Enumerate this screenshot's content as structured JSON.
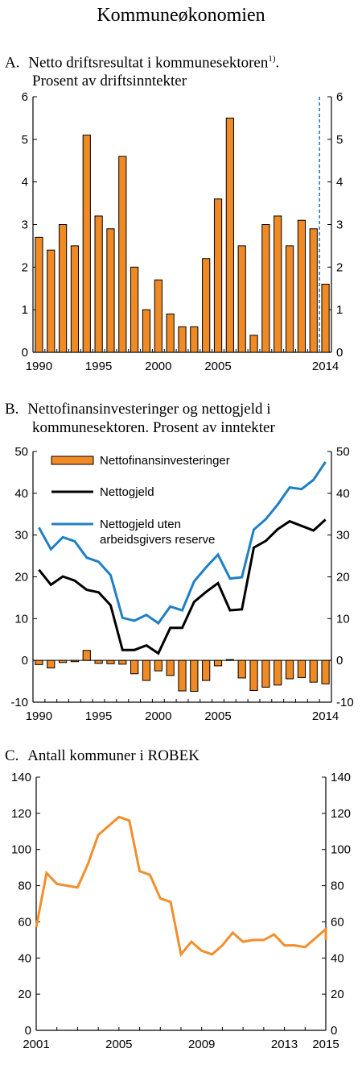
{
  "main_title": "Kommuneøkonomien",
  "panels": {
    "a": {
      "letter": "A.",
      "line1": "Netto driftsresultat i kommunesektoren",
      "footnote": "1)",
      "line1_end": ".",
      "line2": "Prosent av driftsinntekter"
    },
    "b": {
      "letter": "B.",
      "line1": "Nettofinansinvesteringer og nettogjeld i",
      "line2": "kommunesektoren. Prosent av inntekter"
    },
    "c": {
      "letter": "C.",
      "line1": "Antall kommuner i ROBEK"
    }
  },
  "colors": {
    "orange": "#F28E2B",
    "bar_fill": "#F08A24",
    "black": "#000000",
    "blue": "#1F7FC4"
  },
  "chart_data": [
    {
      "type": "bar",
      "x": [
        1990,
        1991,
        1992,
        1993,
        1994,
        1995,
        1996,
        1997,
        1998,
        1999,
        2000,
        2001,
        2002,
        2003,
        2004,
        2005,
        2006,
        2007,
        2008,
        2009,
        2010,
        2011,
        2012,
        2013,
        2014
      ],
      "values": [
        2.7,
        2.4,
        3.0,
        2.5,
        5.1,
        3.2,
        2.9,
        4.6,
        2.0,
        1.0,
        1.7,
        0.9,
        0.6,
        0.6,
        2.2,
        3.6,
        5.5,
        2.5,
        0.4,
        3.0,
        3.2,
        2.5,
        3.1,
        2.9,
        1.6
      ],
      "ylim": [
        0,
        6
      ],
      "yticks": [
        "0",
        "1",
        "2",
        "3",
        "4",
        "5",
        "6"
      ],
      "xtick_labels": [
        {
          "year": 1990,
          "label": "1990"
        },
        {
          "year": 1995,
          "label": "1995"
        },
        {
          "year": 2000,
          "label": "2000"
        },
        {
          "year": 2005,
          "label": "2005"
        },
        {
          "year": 2014,
          "label": "2014"
        }
      ],
      "marker_line_between": [
        2013,
        2014
      ],
      "grid": false
    },
    {
      "type": "bar+line",
      "x": [
        1990,
        1991,
        1992,
        1993,
        1994,
        1995,
        1996,
        1997,
        1998,
        1999,
        2000,
        2001,
        2002,
        2003,
        2004,
        2005,
        2006,
        2007,
        2008,
        2009,
        2010,
        2011,
        2012,
        2013,
        2014
      ],
      "ylim": [
        -10,
        50
      ],
      "yticks": [
        "-10",
        "0",
        "10",
        "20",
        "30",
        "40",
        "50"
      ],
      "xtick_labels": [
        {
          "year": 1990,
          "label": "1990"
        },
        {
          "year": 1995,
          "label": "1995"
        },
        {
          "year": 2000,
          "label": "2000"
        },
        {
          "year": 2005,
          "label": "2005"
        },
        {
          "year": 2014,
          "label": "2014"
        }
      ],
      "series": [
        {
          "name": "Nettofinansinvesteringer",
          "kind": "bar",
          "values": [
            -1.0,
            -1.8,
            -0.5,
            -0.3,
            2.4,
            -0.7,
            -0.8,
            -0.9,
            -3.2,
            -4.8,
            -2.5,
            -3.6,
            -7.3,
            -7.4,
            -4.8,
            -1.3,
            0.2,
            -4.2,
            -7.2,
            -6.4,
            -5.9,
            -4.4,
            -4.1,
            -5.2,
            -5.6
          ]
        },
        {
          "name": "Nettogjeld",
          "kind": "line",
          "values": [
            21.7,
            18.1,
            20.1,
            19.1,
            16.9,
            16.3,
            13.2,
            2.5,
            2.5,
            3.6,
            1.7,
            7.8,
            7.8,
            14.0,
            16.4,
            18.5,
            12.0,
            12.2,
            27.0,
            28.6,
            31.4,
            33.3,
            32.2,
            31.1,
            33.7
          ]
        },
        {
          "name": "Nettogjeld uten arbeidsgivers reserve",
          "kind": "line",
          "label_lines": [
            "Nettogjeld uten",
            "arbeidsgivers reserve"
          ],
          "values": [
            31.8,
            26.6,
            29.5,
            28.5,
            24.6,
            23.6,
            20.4,
            10.2,
            9.5,
            10.9,
            8.9,
            12.9,
            12.0,
            18.9,
            22.3,
            25.3,
            19.6,
            19.9,
            31.3,
            33.8,
            37.3,
            41.4,
            41.0,
            43.2,
            47.5
          ]
        }
      ],
      "legend_position": "upper-left",
      "grid": false
    },
    {
      "type": "line",
      "x": [
        2001,
        2001.5,
        2002,
        2002.5,
        2003,
        2003.5,
        2004,
        2005,
        2005.5,
        2006,
        2006.5,
        2007,
        2007.5,
        2008,
        2008.5,
        2009,
        2009.5,
        2010,
        2010.5,
        2011,
        2011.5,
        2012,
        2012.5,
        2013,
        2013.5,
        2014,
        2014.5,
        2015
      ],
      "values": [
        57,
        87,
        81,
        80,
        79,
        92,
        108,
        118,
        116,
        88,
        86,
        73,
        71,
        42,
        49,
        44,
        42,
        47,
        54,
        49,
        50,
        50,
        53,
        47,
        47,
        46,
        51,
        56
      ],
      "values_end": 50,
      "ylim": [
        0,
        140
      ],
      "yticks": [
        "0",
        "20",
        "40",
        "60",
        "80",
        "100",
        "120",
        "140"
      ],
      "xtick_labels": [
        {
          "year": 2001,
          "label": "2001"
        },
        {
          "year": 2005,
          "label": "2005"
        },
        {
          "year": 2009,
          "label": "2009"
        },
        {
          "year": 2013,
          "label": "2013"
        },
        {
          "year": 2015,
          "label": "2015"
        }
      ],
      "grid": false
    }
  ]
}
